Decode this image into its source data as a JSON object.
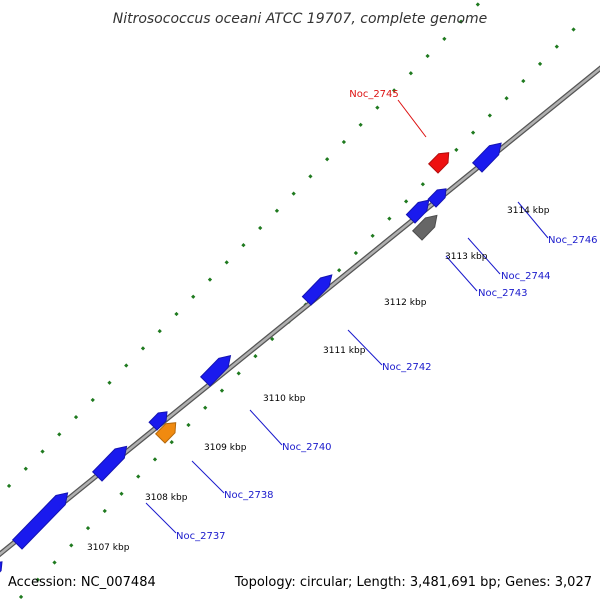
{
  "header": {
    "title": "Nitrosococcus oceani ATCC 19707, complete genome"
  },
  "footer": {
    "accession": "Accession: NC_007484",
    "summary": "Topology: circular; Length: 3,481,691 bp; Genes: 3,027"
  },
  "colors": {
    "background": "#ffffff",
    "backbone": "#888888",
    "tick_green": "#1f7a1f",
    "gene_default": "#1a1aee",
    "gene_highlight": "#ee1111",
    "gene_orange": "#f08a10",
    "gene_gray": "#666666",
    "label_blue": "#1a1acc",
    "label_red": "#dd1111"
  },
  "ticks": [
    {
      "label": "3107 kbp"
    },
    {
      "label": "3108 kbp"
    },
    {
      "label": "3109 kbp"
    },
    {
      "label": "3110 kbp"
    },
    {
      "label": "3111 kbp"
    },
    {
      "label": "3112 kbp"
    },
    {
      "label": "3113 kbp"
    },
    {
      "label": "3114 kbp"
    }
  ],
  "genes": [
    {
      "name": "Noc_2737",
      "labeled": true,
      "color": "gene_default"
    },
    {
      "name": "Noc_2738",
      "labeled": true,
      "color": "gene_orange"
    },
    {
      "name": "Noc_2740",
      "labeled": true,
      "color": "gene_default"
    },
    {
      "name": "Noc_2742",
      "labeled": true,
      "color": "gene_default"
    },
    {
      "name": "Noc_2743",
      "labeled": true,
      "color": "gene_gray"
    },
    {
      "name": "Noc_2744",
      "labeled": true,
      "color": "gene_default"
    },
    {
      "name": "Noc_2745",
      "labeled": true,
      "color": "gene_highlight"
    },
    {
      "name": "Noc_2746",
      "labeled": true,
      "color": "gene_default"
    }
  ]
}
